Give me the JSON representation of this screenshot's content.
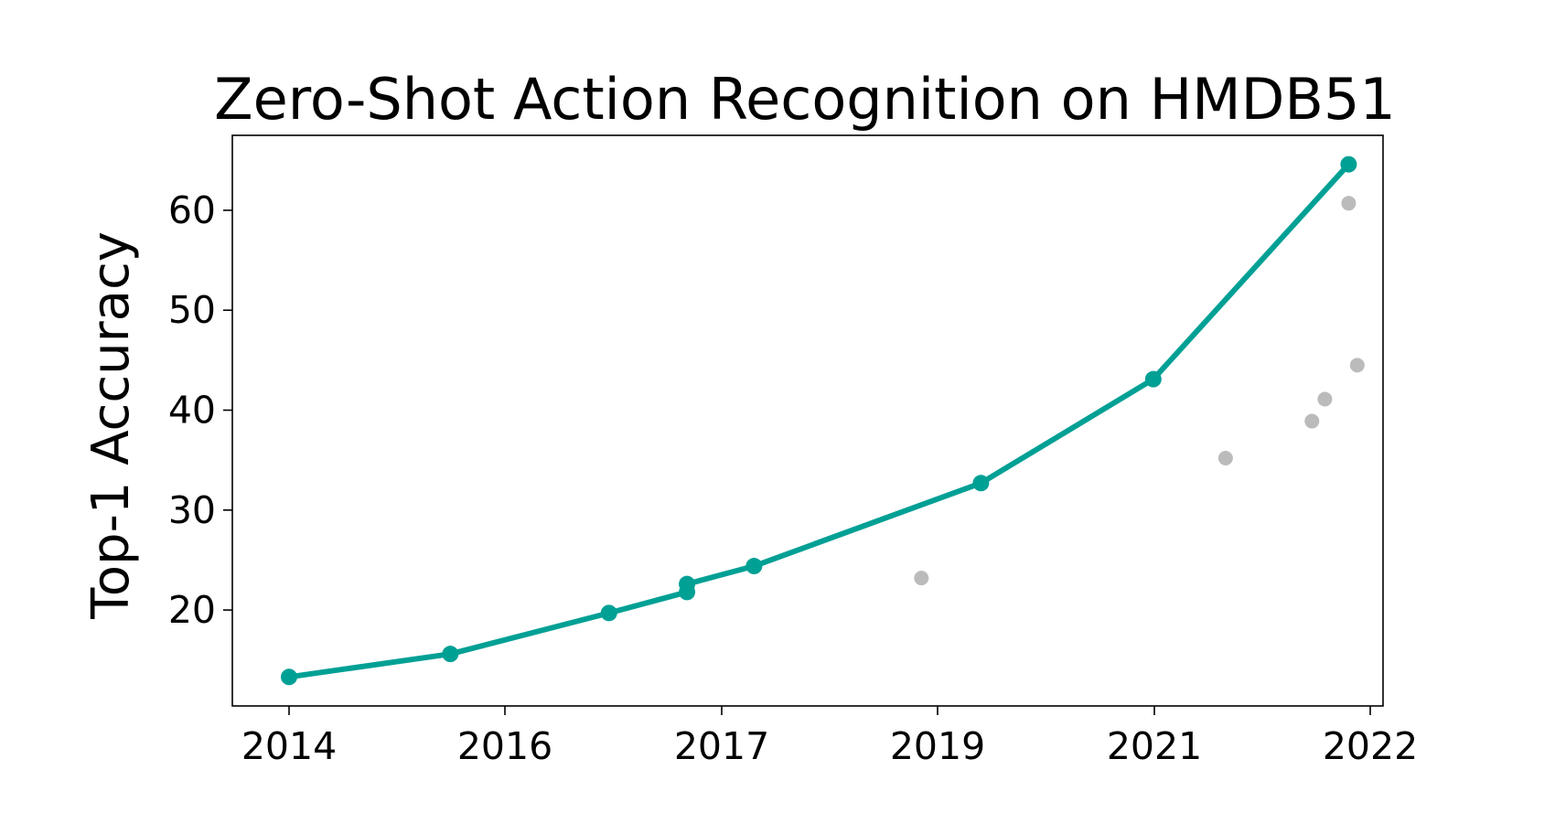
{
  "chart_data": {
    "type": "line",
    "title": "Zero-Shot Action Recognition on HMDB51",
    "xlabel": "",
    "ylabel": "Top-1 Accuracy",
    "x_tick_labels": [
      "2014",
      "2016",
      "2017",
      "2019",
      "2021",
      "2022"
    ],
    "y_ticks": [
      20,
      30,
      40,
      50,
      60
    ],
    "ylim": [
      10.4,
      67.5
    ],
    "grid": false,
    "legend": "none",
    "series": [
      {
        "color": "#00a095",
        "style": "line-with-markers",
        "points": [
          {
            "x": 2014.26,
            "y": 13.3
          },
          {
            "x": 2015.56,
            "y": 15.6
          },
          {
            "x": 2016.48,
            "y": 19.7
          },
          {
            "x": 2016.84,
            "y": 21.8
          },
          {
            "x": 2016.84,
            "y": 22.6
          },
          {
            "x": 2017.3,
            "y": 24.4
          },
          {
            "x": 2019.4,
            "y": 32.7
          },
          {
            "x": 2020.99,
            "y": 43.1
          },
          {
            "x": 2021.9,
            "y": 64.6
          }
        ]
      },
      {
        "color": "#bbbbbb",
        "style": "scatter",
        "points": [
          {
            "x": 2018.85,
            "y": 23.2
          },
          {
            "x": 2021.33,
            "y": 35.2
          },
          {
            "x": 2021.73,
            "y": 38.9
          },
          {
            "x": 2021.79,
            "y": 41.1
          },
          {
            "x": 2021.9,
            "y": 60.7
          },
          {
            "x": 2021.94,
            "y": 44.5
          }
        ]
      }
    ]
  }
}
